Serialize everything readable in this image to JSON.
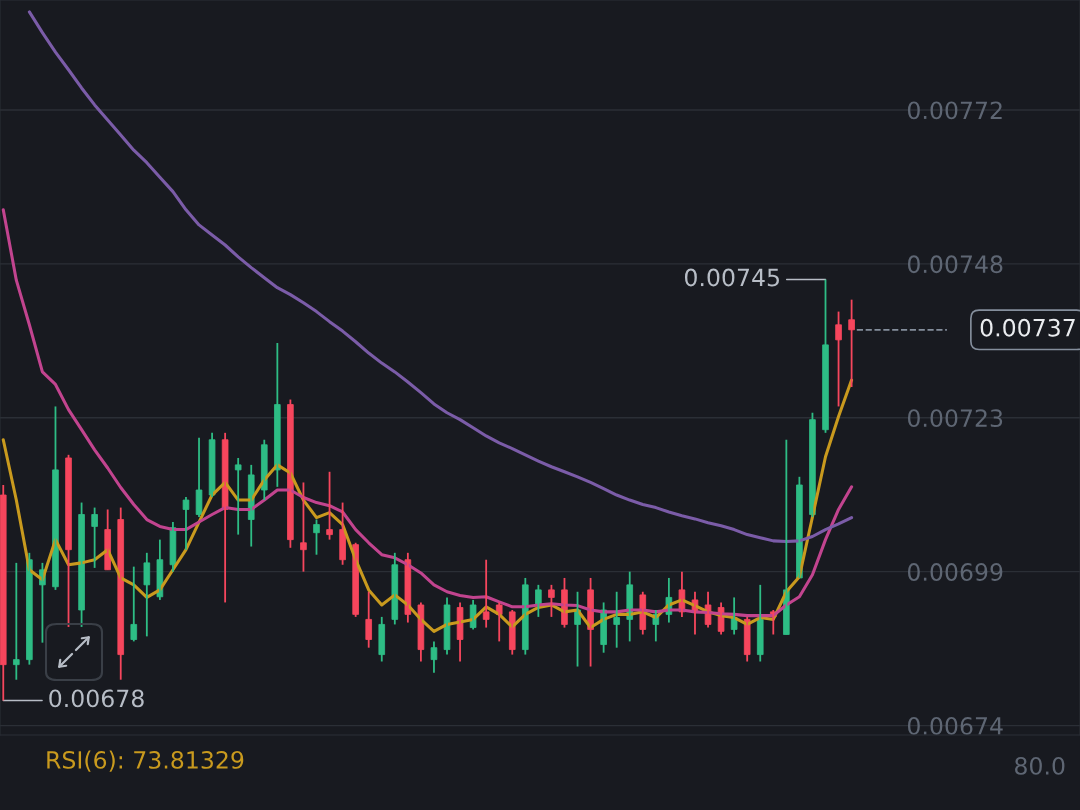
{
  "chart_data": {
    "type": "candlestick",
    "categories": [
      null,
      null,
      null,
      null,
      null,
      null,
      null,
      null,
      null,
      null,
      null,
      null,
      null,
      null,
      null,
      null,
      null,
      null,
      null,
      null,
      null,
      null,
      null,
      null,
      null,
      null,
      null,
      null,
      null,
      null,
      null,
      null,
      null,
      null,
      null,
      null,
      null,
      null,
      null,
      null,
      null,
      null,
      null,
      null,
      null,
      null,
      null,
      null,
      null,
      null,
      null,
      null,
      null,
      null,
      null,
      null,
      null,
      null,
      null,
      null,
      null,
      null,
      null,
      null,
      null,
      null
    ],
    "ohlc": [
      [
        0.007107,
        0.007123,
        0.00678,
        0.006837
      ],
      [
        0.006837,
        0.006999,
        0.006813,
        0.006845
      ],
      [
        0.006845,
        0.007015,
        0.006837,
        0.007004
      ],
      [
        0.006964,
        0.006999,
        0.006872,
        0.006988
      ],
      [
        0.006961,
        0.007248,
        0.006956,
        0.007147
      ],
      [
        0.007166,
        0.007171,
        0.006897,
        0.00702
      ],
      [
        0.006924,
        0.007095,
        0.006897,
        0.007076
      ],
      [
        0.007057,
        0.007087,
        0.006991,
        0.007076
      ],
      [
        0.007052,
        0.007084,
        0.006988,
        0.006988
      ],
      [
        0.007068,
        0.007087,
        0.006813,
        0.006853
      ],
      [
        0.006877,
        0.006993,
        0.006874,
        0.006901
      ],
      [
        0.006964,
        0.007015,
        0.006882,
        0.006999
      ],
      [
        0.006945,
        0.007036,
        0.00694,
        0.007004
      ],
      [
        0.006996,
        0.007064,
        0.006985,
        0.007055
      ],
      [
        0.007084,
        0.007104,
        0.00702,
        0.007099
      ],
      [
        0.007076,
        0.007198,
        0.007072,
        0.007115
      ],
      [
        0.007107,
        0.007206,
        0.007104,
        0.007195
      ],
      [
        0.007195,
        0.007206,
        0.006936,
        0.007084
      ],
      [
        0.007147,
        0.007166,
        0.007044,
        0.007155
      ],
      [
        0.007068,
        0.007155,
        0.007025,
        0.007139
      ],
      [
        0.007115,
        0.007195,
        0.007099,
        0.007187
      ],
      [
        0.007147,
        0.007349,
        0.00712,
        0.007251
      ],
      [
        0.007251,
        0.007259,
        0.007023,
        0.007036
      ],
      [
        0.007031,
        0.007127,
        0.006985,
        0.00702
      ],
      [
        0.007047,
        0.007068,
        0.007012,
        0.00706
      ],
      [
        0.007052,
        0.007144,
        0.007036,
        0.007044
      ],
      [
        0.007052,
        0.007095,
        0.006996,
        0.007004
      ],
      [
        0.007028,
        0.007031,
        0.006913,
        0.006917
      ],
      [
        0.006909,
        0.006953,
        0.006864,
        0.006877
      ],
      [
        0.006853,
        0.006913,
        0.006842,
        0.006901
      ],
      [
        0.006909,
        0.007015,
        0.006901,
        0.006996
      ],
      [
        0.007004,
        0.007015,
        0.006904,
        0.006917
      ],
      [
        0.006932,
        0.006936,
        0.006842,
        0.006861
      ],
      [
        0.006845,
        0.006874,
        0.006824,
        0.006864
      ],
      [
        0.006861,
        0.006944,
        0.006853,
        0.006932
      ],
      [
        0.006928,
        0.006936,
        0.006842,
        0.006877
      ],
      [
        0.006896,
        0.00694,
        0.006893,
        0.006932
      ],
      [
        0.006921,
        0.007004,
        0.006896,
        0.006909
      ],
      [
        0.006932,
        0.006936,
        0.006874,
        0.006917
      ],
      [
        0.006921,
        0.006924,
        0.006853,
        0.006861
      ],
      [
        0.006861,
        0.006975,
        0.006853,
        0.006964
      ],
      [
        0.006932,
        0.006964,
        0.006913,
        0.006956
      ],
      [
        0.006956,
        0.006964,
        0.006913,
        0.006944
      ],
      [
        0.006956,
        0.006975,
        0.006896,
        0.006901
      ],
      [
        0.006901,
        0.006953,
        0.006834,
        0.006924
      ],
      [
        0.006956,
        0.006975,
        0.006834,
        0.006893
      ],
      [
        0.006869,
        0.006936,
        0.006856,
        0.006924
      ],
      [
        0.006901,
        0.006953,
        0.006864,
        0.006912
      ],
      [
        0.006909,
        0.006985,
        0.006874,
        0.006964
      ],
      [
        0.006948,
        0.006953,
        0.006885,
        0.006893
      ],
      [
        0.006901,
        0.006924,
        0.006874,
        0.006917
      ],
      [
        0.006917,
        0.006975,
        0.006904,
        0.006944
      ],
      [
        0.006956,
        0.006985,
        0.006913,
        0.006921
      ],
      [
        0.00694,
        0.006953,
        0.006885,
        0.006921
      ],
      [
        0.006932,
        0.006953,
        0.006896,
        0.006901
      ],
      [
        0.006928,
        0.006936,
        0.006885,
        0.00689
      ],
      [
        0.006893,
        0.006944,
        0.006885,
        0.006912
      ],
      [
        0.006909,
        0.006913,
        0.006842,
        0.006853
      ],
      [
        0.006853,
        0.006964,
        0.006842,
        0.006909
      ],
      [
        0.006921,
        0.006924,
        0.006885,
        0.006913
      ],
      [
        0.006885,
        0.007195,
        0.006885,
        0.006956
      ],
      [
        0.006975,
        0.007136,
        0.006975,
        0.007123
      ],
      [
        0.007076,
        0.007238,
        0.007072,
        0.007227
      ],
      [
        0.007211,
        0.00745,
        0.007206,
        0.007346
      ],
      [
        0.007378,
        0.007399,
        0.007248,
        0.007354
      ],
      [
        0.007386,
        0.007418,
        0.007279,
        0.00737
      ]
    ],
    "colors": [
      "#f6465d",
      "#2ebd85",
      "#2ebd85",
      "#2ebd85",
      "#2ebd85",
      "#f6465d",
      "#2ebd85",
      "#2ebd85",
      "#f6465d",
      "#f6465d",
      "#2ebd85",
      "#2ebd85",
      "#2ebd85",
      "#2ebd85",
      "#2ebd85",
      "#2ebd85",
      "#2ebd85",
      "#f6465d",
      "#2ebd85",
      "#2ebd85",
      "#2ebd85",
      "#2ebd85",
      "#f6465d",
      "#f6465d",
      "#2ebd85",
      "#f6465d",
      "#f6465d",
      "#f6465d",
      "#f6465d",
      "#2ebd85",
      "#2ebd85",
      "#f6465d",
      "#f6465d",
      "#2ebd85",
      "#2ebd85",
      "#f6465d",
      "#2ebd85",
      "#f6465d",
      "#f6465d",
      "#f6465d",
      "#2ebd85",
      "#2ebd85",
      "#f6465d",
      "#f6465d",
      "#2ebd85",
      "#f6465d",
      "#2ebd85",
      "#2ebd85",
      "#2ebd85",
      "#f6465d",
      "#2ebd85",
      "#2ebd85",
      "#f6465d",
      "#f6465d",
      "#f6465d",
      "#f6465d",
      "#2ebd85",
      "#f6465d",
      "#2ebd85",
      "#f6465d",
      "#2ebd85",
      "#2ebd85",
      "#2ebd85",
      "#2ebd85",
      "#f6465d",
      "#f6465d"
    ],
    "series": [
      {
        "type": "line",
        "color": "#c99a1e",
        "values": [
          0.007195,
          0.007099,
          0.006988,
          0.006972,
          0.007036,
          0.006996,
          0.006999,
          0.007004,
          0.00702,
          0.006975,
          0.006964,
          0.006944,
          0.006956,
          0.006988,
          0.00702,
          0.007064,
          0.007107,
          0.007127,
          0.007099,
          0.007099,
          0.007131,
          0.007155,
          0.007142,
          0.007099,
          0.007071,
          0.007079,
          0.00706,
          0.007004,
          0.006956,
          0.006932,
          0.006948,
          0.006932,
          0.006909,
          0.00689,
          0.006901,
          0.006905,
          0.006909,
          0.006929,
          0.006917,
          0.006897,
          0.006917,
          0.006928,
          0.006932,
          0.006921,
          0.006924,
          0.006896,
          0.006909,
          0.006917,
          0.006917,
          0.006921,
          0.006912,
          0.006932,
          0.00694,
          0.006931,
          0.006921,
          0.006915,
          0.006912,
          0.006901,
          0.006912,
          0.006909,
          0.006953,
          0.006977,
          0.007072,
          0.007168,
          0.007232,
          0.00729
        ]
      },
      {
        "type": "line",
        "color": "#c2448f",
        "values": [
          0.007561,
          0.007449,
          0.007378,
          0.007303,
          0.007283,
          0.007243,
          0.007211,
          0.007179,
          0.00715,
          0.007119,
          0.007092,
          0.007068,
          0.007057,
          0.007052,
          0.007052,
          0.007064,
          0.007076,
          0.007087,
          0.007084,
          0.007084,
          0.007099,
          0.007115,
          0.007115,
          0.007103,
          0.007095,
          0.00709,
          0.00708,
          0.007052,
          0.007031,
          0.007012,
          0.007007,
          0.006996,
          0.006983,
          0.006964,
          0.006953,
          0.006947,
          0.006944,
          0.006945,
          0.006937,
          0.006929,
          0.006929,
          0.006932,
          0.006934,
          0.006932,
          0.006931,
          0.006924,
          0.006921,
          0.006921,
          0.006924,
          0.006924,
          0.006921,
          0.006924,
          0.006924,
          0.006921,
          0.00692,
          0.006918,
          0.006917,
          0.006915,
          0.006915,
          0.006915,
          0.006932,
          0.006945,
          0.00698,
          0.007036,
          0.007084,
          0.00712
        ]
      },
      {
        "type": "line",
        "color": "#7b5ca8",
        "values": [
          null,
          null,
          0.007876,
          0.007843,
          0.007812,
          0.007784,
          0.007755,
          0.007728,
          0.007704,
          0.00768,
          0.007656,
          0.007636,
          0.007613,
          0.00759,
          0.007561,
          0.007537,
          0.007521,
          0.007505,
          0.007486,
          0.007469,
          0.007453,
          0.007437,
          0.007426,
          0.007413,
          0.007399,
          0.007383,
          0.007368,
          0.007351,
          0.007333,
          0.007317,
          0.007303,
          0.007287,
          0.00727,
          0.007252,
          0.007238,
          0.007227,
          0.007214,
          0.007201,
          0.00719,
          0.007181,
          0.007171,
          0.007161,
          0.007152,
          0.007144,
          0.007136,
          0.007127,
          0.007117,
          0.007107,
          0.007099,
          0.007092,
          0.007087,
          0.00708,
          0.007074,
          0.007069,
          0.007063,
          0.007058,
          0.007052,
          0.007044,
          0.007039,
          0.007034,
          0.007033,
          0.007034,
          0.007041,
          0.007052,
          0.007061,
          0.007071
        ]
      }
    ],
    "ylim": [
      0.006725,
      0.007895
    ],
    "yticks": [
      {
        "value": 0.00674,
        "label": "0.00674"
      },
      {
        "value": 0.006985,
        "label": "0.00699"
      },
      {
        "value": 0.00723,
        "label": "0.00723"
      },
      {
        "value": 0.007475,
        "label": "0.00748"
      },
      {
        "value": 0.00772,
        "label": "0.00772"
      }
    ],
    "grid": "y",
    "ref_lines": [
      {
        "axis": "y",
        "value": 0.00737,
        "label": "0.00737",
        "color": "#848e9c",
        "line_style": "dashed"
      }
    ],
    "annotations": [
      "0.00745",
      "0.00678",
      "RSI(6): 73.81329",
      "80.0"
    ]
  }
}
